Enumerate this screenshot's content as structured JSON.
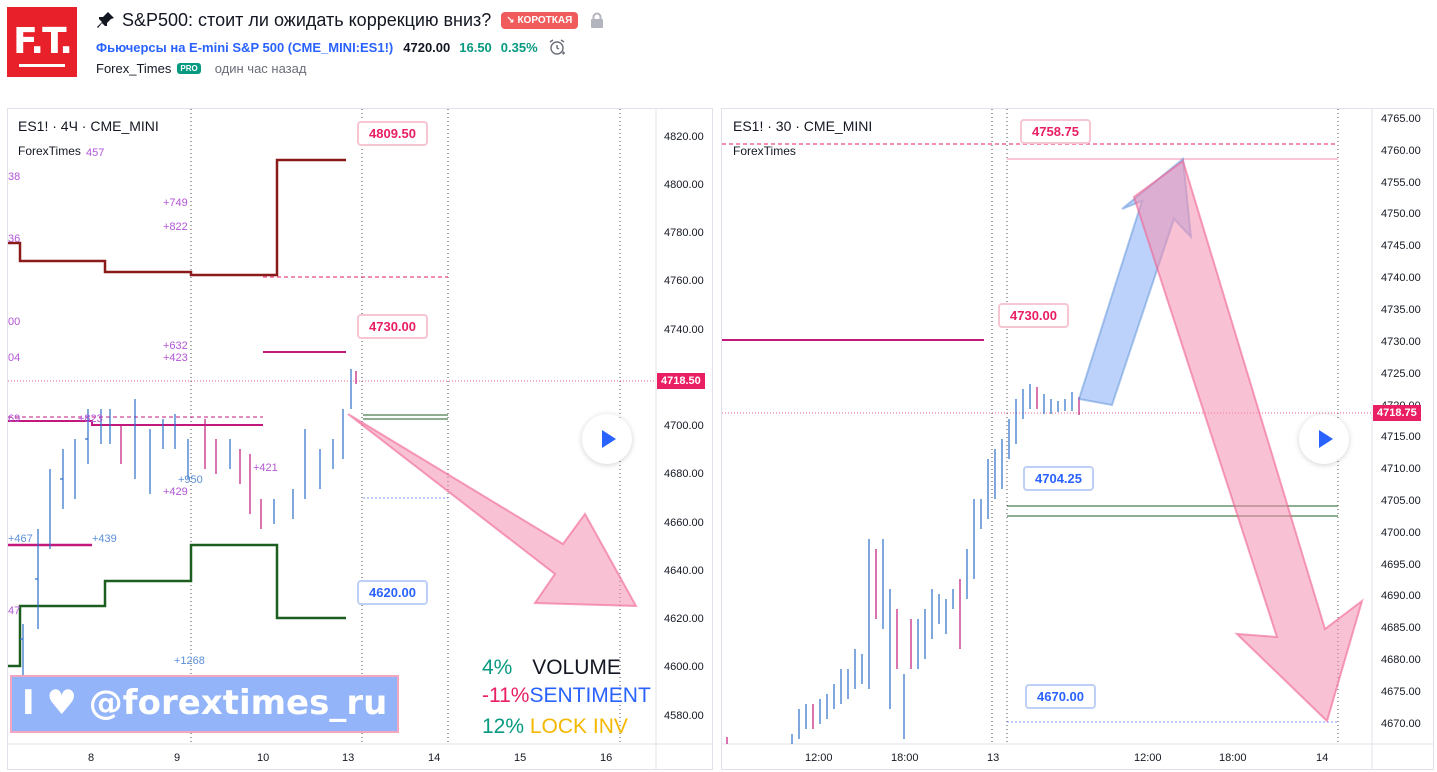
{
  "header": {
    "logo_text": "F.T.",
    "title": "S&P500: стоит ли ожидать коррекцию вниз?",
    "badge_short": "↘ КОРОТКАЯ",
    "symbol_link": "Фьючерсы на E-mini S&P 500 (CME_MINI:ES1!)",
    "price": "4720.00",
    "change": "16.50",
    "change_pct": "0.35%",
    "author": "Forex_Times",
    "pro_badge": "PRO",
    "published": "один час назад"
  },
  "colors": {
    "accent_red": "#e91e63",
    "accent_blue": "#2962ff",
    "brand_red": "#e8202a",
    "green": "#089981"
  },
  "left_chart": {
    "title": "ES1! · 4Ч · CME_MINI",
    "subtitle": "ForexTimes",
    "price_axis": [
      "4820.00",
      "4800.00",
      "4780.00",
      "4760.00",
      "4740.00",
      "4720.00",
      "4700.00",
      "4680.00",
      "4660.00",
      "4640.00",
      "4620.00",
      "4600.00",
      "4580.00"
    ],
    "time_axis": [
      "8",
      "9",
      "10",
      "13",
      "14",
      "15",
      "16"
    ],
    "current_price": "4718.50",
    "tags": {
      "upper": "4809.50",
      "mid": "4730.00",
      "lower": "4620.00"
    },
    "annotations": [
      "457",
      "+749",
      "+822",
      "+632",
      "+423",
      "+823",
      "+950",
      "+429",
      "+421",
      "+439",
      "+1268",
      "+467",
      "38",
      "36",
      "00",
      "04",
      "69",
      "47"
    ],
    "stats": [
      {
        "pct": "4%",
        "label": "VOLUME"
      },
      {
        "pct": "-11%",
        "label": "SENTIMENT"
      },
      {
        "pct": "12%",
        "label": "LOCK INV"
      }
    ],
    "watermark": "I ♥ @forextimes_ru",
    "play_icon": "play-icon"
  },
  "right_chart": {
    "title": "ES1! · 30 · CME_MINI",
    "subtitle": "ForexTimes",
    "price_axis": [
      "4765.00",
      "4760.00",
      "4755.00",
      "4750.00",
      "4745.00",
      "4740.00",
      "4735.00",
      "4730.00",
      "4725.00",
      "4720.00",
      "4715.00",
      "4710.00",
      "4705.00",
      "4700.00",
      "4695.00",
      "4690.00",
      "4685.00",
      "4680.00",
      "4675.00",
      "4670.00"
    ],
    "time_axis": [
      "12:00",
      "18:00",
      "13",
      "12:00",
      "18:00",
      "14"
    ],
    "current_price": "4718.75",
    "tags": {
      "top": "4758.75",
      "mid": "4730.00",
      "lower": "4704.25",
      "bottom": "4670.00"
    },
    "play_icon": "play-icon"
  }
}
